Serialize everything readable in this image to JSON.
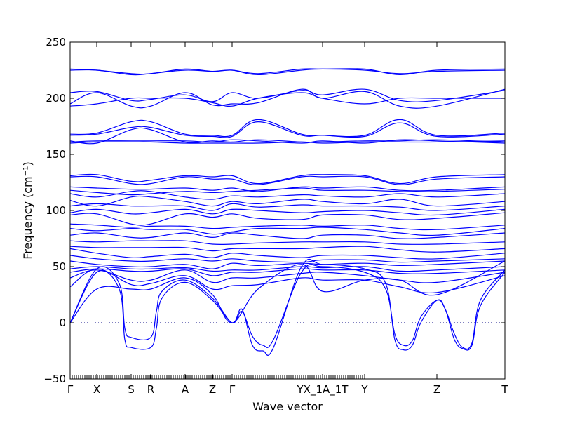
{
  "chart_data": {
    "type": "line",
    "title": "",
    "xlabel": "Wave vector",
    "ylabel": "Frequency (cm⁻¹)",
    "ylim": [
      -50,
      250
    ],
    "xlim": [
      0,
      620
    ],
    "grid": false,
    "y_ticks": [
      -50,
      0,
      50,
      100,
      150,
      200,
      250
    ],
    "zero_line": 0,
    "line_color": "#0000ff",
    "zero_line_color": "#000080",
    "high_symmetry_points": [
      {
        "label": "Γ",
        "x": 0
      },
      {
        "label": "X",
        "x": 38
      },
      {
        "label": "S",
        "x": 87
      },
      {
        "label": "R",
        "x": 115
      },
      {
        "label": "A",
        "x": 164
      },
      {
        "label": "Z",
        "x": 203
      },
      {
        "label": "Γ",
        "x": 231
      },
      {
        "label": "YX_1A_1T",
        "x": 360
      },
      {
        "label": "Y",
        "x": 420
      },
      {
        "label": "Z",
        "x": 523
      },
      {
        "label": "T",
        "x": 620
      }
    ],
    "minor_tick_step": 3,
    "minor_tick_until": 420,
    "series": [
      {
        "x": [
          0,
          38,
          87,
          115,
          164,
          203,
          231,
          268,
          330,
          360,
          420,
          470,
          523,
          620
        ],
        "y": [
          226,
          225,
          222,
          222,
          226,
          224,
          225,
          222,
          226,
          226,
          226,
          221,
          225,
          226
        ]
      },
      {
        "x": [
          0,
          38,
          87,
          115,
          164,
          203,
          231,
          268,
          330,
          360,
          420,
          470,
          523,
          620
        ],
        "y": [
          225,
          225,
          221,
          222,
          225,
          224,
          225,
          221,
          225,
          226,
          225,
          222,
          224,
          225
        ]
      },
      {
        "x": [
          0,
          38,
          87,
          115,
          164,
          203,
          231,
          268,
          330,
          360,
          420,
          470,
          523,
          620
        ],
        "y": [
          205,
          206,
          198,
          199,
          203,
          197,
          205,
          200,
          207,
          203,
          208,
          198,
          198,
          207
        ]
      },
      {
        "x": [
          0,
          38,
          87,
          115,
          164,
          203,
          231,
          268,
          330,
          360,
          420,
          470,
          523,
          620
        ],
        "y": [
          195,
          205,
          193,
          193,
          205,
          194,
          195,
          196,
          208,
          200,
          206,
          193,
          193,
          208
        ]
      },
      {
        "x": [
          0,
          38,
          87,
          115,
          164,
          203,
          231,
          268,
          330,
          360,
          420,
          470,
          523,
          620
        ],
        "y": [
          193,
          195,
          200,
          200,
          200,
          196,
          193,
          200,
          205,
          200,
          195,
          200,
          200,
          200
        ]
      },
      {
        "x": [
          0,
          38,
          87,
          115,
          164,
          203,
          231,
          268,
          330,
          360,
          420,
          470,
          523,
          620
        ],
        "y": [
          168,
          169,
          179,
          179,
          168,
          167,
          167,
          181,
          168,
          167,
          167,
          181,
          167,
          169
        ]
      },
      {
        "x": [
          0,
          38,
          87,
          115,
          164,
          203,
          231,
          268,
          330,
          360,
          420,
          470,
          523,
          620
        ],
        "y": [
          167,
          168,
          174,
          174,
          167,
          166,
          166,
          179,
          167,
          167,
          166,
          178,
          166,
          168
        ]
      },
      {
        "x": [
          0,
          38,
          87,
          115,
          164,
          203,
          231,
          268,
          330,
          360,
          420,
          470,
          523,
          620
        ],
        "y": [
          162,
          160,
          172,
          172,
          161,
          162,
          161,
          163,
          161,
          161,
          162,
          162,
          163,
          161
        ]
      },
      {
        "x": [
          0,
          38,
          87,
          115,
          164,
          203,
          231,
          268,
          330,
          360,
          420,
          470,
          523,
          620
        ],
        "y": [
          161,
          162,
          162,
          162,
          162,
          161,
          163,
          162,
          160,
          162,
          160,
          163,
          162,
          160
        ]
      },
      {
        "x": [
          0,
          38,
          87,
          115,
          164,
          203,
          231,
          268,
          330,
          360,
          420,
          470,
          523,
          620
        ],
        "y": [
          160,
          161,
          161,
          161,
          160,
          160,
          160,
          160,
          161,
          160,
          161,
          161,
          161,
          162
        ]
      },
      {
        "x": [
          0,
          38,
          87,
          115,
          164,
          203,
          231,
          268,
          330,
          360,
          420,
          470,
          523,
          620
        ],
        "y": [
          131,
          132,
          126,
          127,
          131,
          130,
          131,
          124,
          131,
          132,
          131,
          124,
          130,
          132
        ]
      },
      {
        "x": [
          0,
          38,
          87,
          115,
          164,
          203,
          231,
          268,
          330,
          360,
          420,
          470,
          523,
          620
        ],
        "y": [
          130,
          130,
          124,
          124,
          130,
          128,
          128,
          123,
          130,
          130,
          130,
          123,
          128,
          130
        ]
      },
      {
        "x": [
          0,
          38,
          87,
          115,
          164,
          203,
          231,
          268,
          330,
          360,
          420,
          470,
          523,
          620
        ],
        "y": [
          121,
          120,
          119,
          119,
          120,
          118,
          120,
          117,
          121,
          120,
          121,
          118,
          118,
          121
        ]
      },
      {
        "x": [
          0,
          38,
          87,
          115,
          164,
          203,
          231,
          268,
          330,
          360,
          420,
          470,
          523,
          620
        ],
        "y": [
          118,
          116,
          114,
          115,
          117,
          116,
          117,
          118,
          120,
          118,
          118,
          117,
          117,
          119
        ]
      },
      {
        "x": [
          0,
          38,
          87,
          115,
          164,
          203,
          231,
          268,
          330,
          360,
          420,
          470,
          523,
          620
        ],
        "y": [
          115,
          112,
          117,
          117,
          112,
          110,
          113,
          112,
          114,
          113,
          112,
          115,
          112,
          115
        ]
      },
      {
        "x": [
          0,
          38,
          87,
          115,
          164,
          203,
          231,
          268,
          330,
          360,
          420,
          470,
          523,
          620
        ],
        "y": [
          109,
          104,
          112,
          112,
          108,
          104,
          108,
          106,
          110,
          108,
          106,
          110,
          104,
          108
        ]
      },
      {
        "x": [
          0,
          38,
          87,
          115,
          164,
          203,
          231,
          268,
          330,
          360,
          420,
          470,
          523,
          620
        ],
        "y": [
          104,
          106,
          104,
          104,
          104,
          100,
          106,
          103,
          105,
          104,
          104,
          103,
          100,
          104
        ]
      },
      {
        "x": [
          0,
          38,
          87,
          115,
          164,
          203,
          231,
          268,
          330,
          360,
          420,
          470,
          523,
          620
        ],
        "y": [
          98,
          101,
          97,
          98,
          101,
          97,
          101,
          100,
          98,
          99,
          100,
          98,
          96,
          101
        ]
      },
      {
        "x": [
          0,
          38,
          87,
          115,
          164,
          203,
          231,
          268,
          330,
          360,
          420,
          470,
          523,
          620
        ],
        "y": [
          96,
          97,
          88,
          88,
          97,
          94,
          97,
          93,
          92,
          96,
          96,
          92,
          93,
          98
        ]
      },
      {
        "x": [
          0,
          38,
          87,
          115,
          164,
          203,
          231,
          268,
          330,
          360,
          420,
          470,
          523,
          620
        ],
        "y": [
          88,
          87,
          85,
          86,
          86,
          84,
          85,
          86,
          87,
          86,
          87,
          84,
          83,
          87
        ]
      },
      {
        "x": [
          0,
          38,
          87,
          115,
          164,
          203,
          231,
          268,
          330,
          360,
          420,
          470,
          523,
          620
        ],
        "y": [
          84,
          82,
          84,
          83,
          83,
          79,
          81,
          84,
          84,
          85,
          83,
          80,
          78,
          84
        ]
      },
      {
        "x": [
          0,
          38,
          87,
          115,
          164,
          203,
          231,
          268,
          330,
          360,
          420,
          470,
          523,
          620
        ],
        "y": [
          78,
          80,
          76,
          76,
          80,
          76,
          80,
          78,
          75,
          78,
          78,
          75,
          76,
          80
        ]
      },
      {
        "x": [
          0,
          38,
          87,
          115,
          164,
          203,
          231,
          268,
          330,
          360,
          420,
          470,
          523,
          620
        ],
        "y": [
          73,
          72,
          73,
          73,
          73,
          70,
          70,
          71,
          72,
          72,
          72,
          70,
          70,
          72
        ]
      },
      {
        "x": [
          0,
          38,
          87,
          115,
          164,
          203,
          231,
          268,
          330,
          360,
          420,
          470,
          523,
          620
        ],
        "y": [
          68,
          67,
          67,
          67,
          67,
          64,
          66,
          66,
          66,
          67,
          68,
          65,
          63,
          66
        ]
      },
      {
        "x": [
          0,
          38,
          87,
          115,
          164,
          203,
          231,
          268,
          330,
          360,
          420,
          470,
          523,
          620
        ],
        "y": [
          66,
          62,
          58,
          59,
          61,
          58,
          62,
          60,
          58,
          60,
          60,
          58,
          57,
          62
        ]
      },
      {
        "x": [
          0,
          38,
          87,
          115,
          164,
          203,
          231,
          268,
          330,
          360,
          420,
          470,
          523,
          620
        ],
        "y": [
          60,
          57,
          55,
          55,
          57,
          55,
          57,
          55,
          54,
          56,
          56,
          54,
          55,
          57
        ]
      },
      {
        "x": [
          0,
          38,
          87,
          115,
          164,
          203,
          231,
          268,
          330,
          360,
          420,
          470,
          523,
          620
        ],
        "y": [
          55,
          52,
          50,
          50,
          52,
          48,
          53,
          51,
          53,
          52,
          53,
          51,
          52,
          55
        ]
      },
      {
        "x": [
          0,
          38,
          87,
          115,
          164,
          203,
          231,
          268,
          330,
          360,
          420,
          470,
          523,
          620
        ],
        "y": [
          48,
          50,
          48,
          48,
          49,
          46,
          47,
          47,
          50,
          49,
          50,
          46,
          47,
          50
        ]
      },
      {
        "x": [
          0,
          38,
          87,
          115,
          164,
          203,
          231,
          268,
          330,
          360,
          420,
          470,
          523,
          620
        ],
        "y": [
          45,
          48,
          46,
          46,
          48,
          42,
          45,
          45,
          48,
          47,
          47,
          44,
          44,
          47
        ]
      },
      {
        "x": [
          0,
          38,
          87,
          115,
          164,
          203,
          231,
          268,
          330,
          360,
          420,
          470,
          523,
          620
        ],
        "y": [
          40,
          47,
          38,
          38,
          47,
          36,
          40,
          40,
          44,
          45,
          42,
          38,
          36,
          45
        ]
      },
      {
        "x": [
          0,
          38,
          87,
          115,
          164,
          203,
          231,
          268,
          330,
          360,
          420,
          470,
          523,
          620
        ],
        "y": [
          32,
          48,
          34,
          35,
          42,
          30,
          33,
          34,
          40,
          38,
          38,
          32,
          27,
          42
        ]
      },
      {
        "x": [
          0,
          38,
          70,
          78,
          87,
          115,
          123,
          131,
          164,
          203,
          231,
          245,
          260,
          275,
          290,
          330,
          360,
          420,
          450,
          463,
          475,
          488,
          500,
          523,
          535,
          548,
          560,
          573,
          585,
          620
        ],
        "y": [
          0,
          48,
          35,
          -5,
          -13,
          -13,
          10,
          28,
          38,
          22,
          0,
          10,
          -12,
          -20,
          -15,
          45,
          50,
          45,
          30,
          -10,
          -20,
          -16,
          5,
          20,
          12,
          -10,
          -22,
          -18,
          20,
          47
        ]
      },
      {
        "x": [
          0,
          38,
          70,
          78,
          87,
          115,
          123,
          131,
          164,
          203,
          231,
          245,
          260,
          275,
          290,
          330,
          360,
          420,
          450,
          463,
          475,
          488,
          500,
          523,
          535,
          548,
          560,
          573,
          585,
          620
        ],
        "y": [
          0,
          45,
          30,
          -15,
          -22,
          -22,
          -5,
          22,
          36,
          20,
          0,
          12,
          -20,
          -25,
          -22,
          50,
          52,
          48,
          35,
          -15,
          -24,
          -20,
          0,
          20,
          12,
          -15,
          -23,
          -20,
          15,
          45
        ]
      },
      {
        "x": [
          0,
          38,
          87,
          115,
          164,
          203,
          231,
          268,
          330,
          360,
          420,
          470,
          523,
          620
        ],
        "y": [
          0,
          30,
          30,
          30,
          40,
          25,
          0,
          30,
          52,
          28,
          38,
          38,
          25,
          55
        ]
      }
    ]
  }
}
